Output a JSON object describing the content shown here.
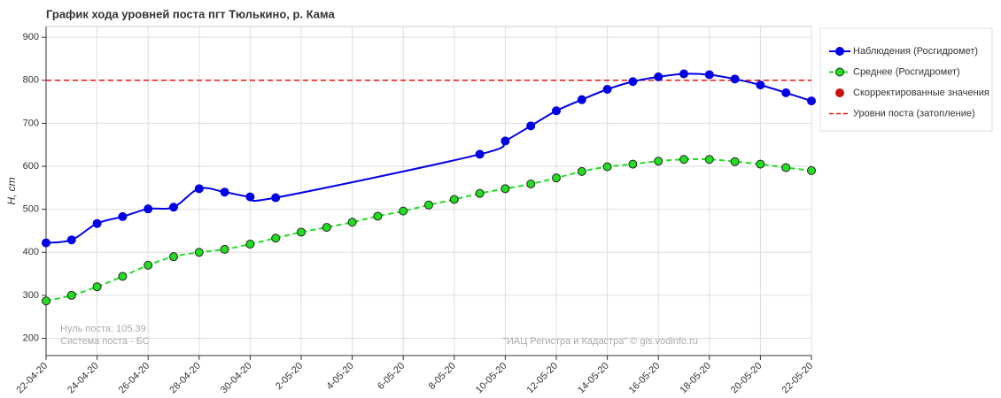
{
  "chart_data": {
    "type": "line",
    "title": "График хода уровней поста пгт Тюлькино, р. Кама",
    "y_label": "H, cm",
    "annotations": [
      "Нуль поста: 105.39",
      "Система поста - БС",
      "\"ИАЦ Регистра и Кадастра\" © gis.vodinfo.ru"
    ],
    "xlim": [
      "22-04-20",
      "22-05-20"
    ],
    "xticks": [
      "22-04-20",
      "24-04-20",
      "26-04-20",
      "28-04-20",
      "30-04-20",
      "2-05-20",
      "4-05-20",
      "6-05-20",
      "8-05-20",
      "10-05-20",
      "12-05-20",
      "14-05-20",
      "16-05-20",
      "18-05-20",
      "20-05-20",
      "22-05-20"
    ],
    "ylim": [
      160,
      925
    ],
    "yticks": [
      200,
      300,
      400,
      500,
      600,
      700,
      800,
      900
    ],
    "grid": true,
    "legend": "right",
    "series": [
      {
        "name": "Наблюдения (Росгидромет)",
        "color": "#0000e6",
        "style": "solid",
        "x": [
          "22-04-20",
          "23-04-20",
          "24-04-20",
          "25-04-20",
          "26-04-20",
          "27-04-20",
          "28-04-20",
          "29-04-20",
          "30-04-20",
          "1-05-20",
          "9-05-20",
          "10-05-20",
          "11-05-20",
          "12-05-20",
          "13-05-20",
          "14-05-20",
          "15-05-20",
          "16-05-20",
          "17-05-20",
          "18-05-20",
          "19-05-20",
          "20-05-20",
          "21-05-20",
          "22-05-20"
        ],
        "values": [
          422,
          429,
          467,
          483,
          501,
          505,
          548,
          540,
          529,
          527,
          628,
          659,
          694,
          729,
          755,
          779,
          797,
          808,
          815,
          813,
          803,
          789,
          771,
          752
        ]
      },
      {
        "name": "Среднее (Росгидромет)",
        "color": "#22dd22",
        "style": "dashed",
        "x": [
          "22-04-20",
          "23-04-20",
          "24-04-20",
          "25-04-20",
          "26-04-20",
          "27-04-20",
          "28-04-20",
          "29-04-20",
          "30-04-20",
          "1-05-20",
          "2-05-20",
          "3-05-20",
          "4-05-20",
          "5-05-20",
          "6-05-20",
          "7-05-20",
          "8-05-20",
          "9-05-20",
          "10-05-20",
          "11-05-20",
          "12-05-20",
          "13-05-20",
          "14-05-20",
          "15-05-20",
          "16-05-20",
          "17-05-20",
          "18-05-20",
          "19-05-20",
          "20-05-20",
          "21-05-20",
          "22-05-20"
        ],
        "values": [
          287,
          300,
          320,
          344,
          370,
          390,
          400,
          407,
          419,
          433,
          447,
          458,
          470,
          484,
          496,
          510,
          523,
          537,
          548,
          559,
          573,
          588,
          599,
          605,
          612,
          616,
          616,
          611,
          605,
          597,
          590
        ]
      },
      {
        "name": "Скорректированные значения",
        "color": "#cc1111",
        "style": "points",
        "x": [],
        "values": []
      }
    ],
    "reference_line": {
      "name": "Уровни поста (затопление)",
      "value": 800,
      "color": "#ee1111"
    }
  }
}
